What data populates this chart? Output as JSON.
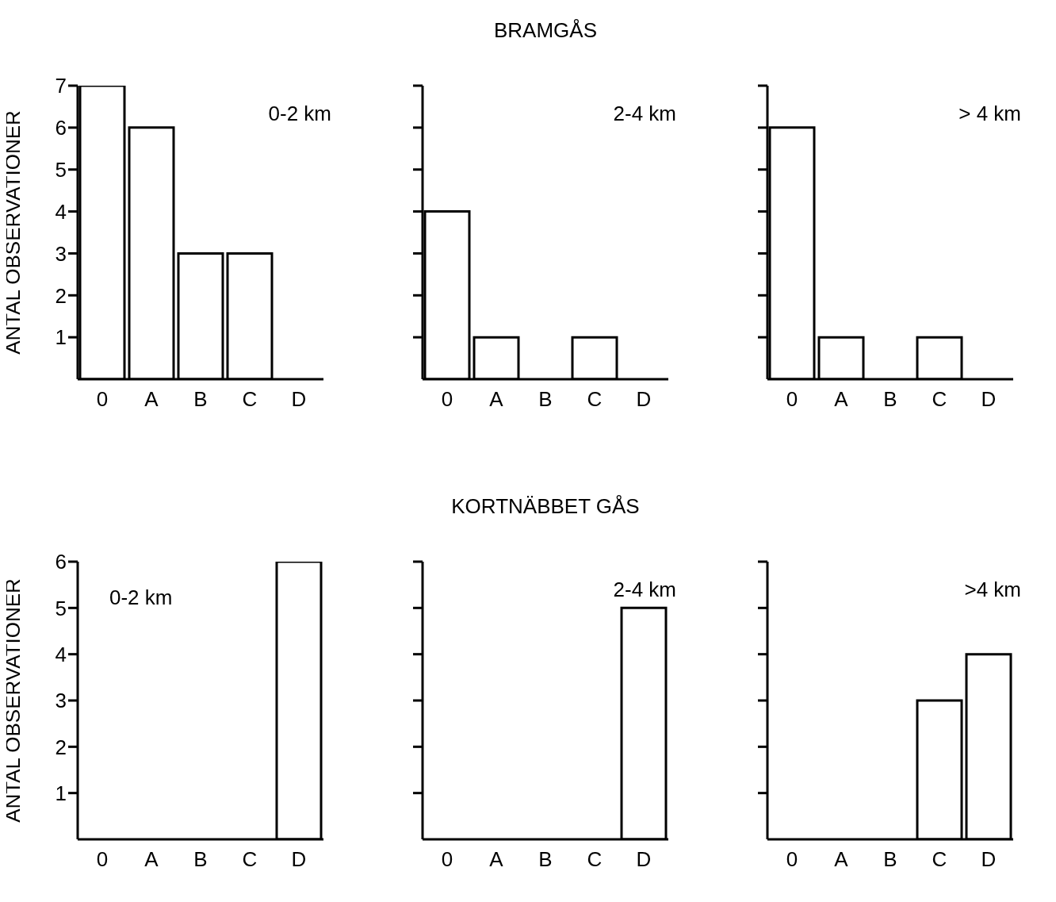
{
  "chart_data": [
    {
      "type": "bar",
      "ylabel": "ANTAL OBSERVATIONER",
      "annotations": [
        "0-2 km"
      ],
      "categories": [
        "0",
        "A",
        "B",
        "C",
        "D"
      ],
      "values": [
        7,
        6,
        3,
        3,
        0
      ],
      "color": "#ffffff",
      "ylim": [
        0,
        7
      ],
      "yticks": [
        1,
        2,
        3,
        4,
        5,
        6,
        7
      ],
      "grid": false
    },
    {
      "type": "bar",
      "title": "BRAMGÅS",
      "annotations": [
        "2-4 km"
      ],
      "categories": [
        "0",
        "A",
        "B",
        "C",
        "D"
      ],
      "values": [
        4,
        1,
        0,
        1,
        0
      ],
      "color": "#ffffff",
      "ylim": [
        0,
        7
      ],
      "yticks": [
        1,
        2,
        3,
        4,
        5,
        6,
        7
      ],
      "grid": false,
      "tick_labels": "x"
    },
    {
      "type": "bar",
      "annotations": [
        "> 4 km"
      ],
      "categories": [
        "0",
        "A",
        "B",
        "C",
        "D"
      ],
      "values": [
        6,
        1,
        0,
        1,
        0
      ],
      "color": "#ffffff",
      "ylim": [
        0,
        7
      ],
      "yticks": [
        1,
        2,
        3,
        4,
        5,
        6,
        7
      ],
      "grid": false,
      "tick_labels": "x"
    },
    {
      "type": "bar",
      "ylabel": "ANTAL OBSERVATIONER",
      "annotations": [
        "0-2 km"
      ],
      "categories": [
        "0",
        "A",
        "B",
        "C",
        "D"
      ],
      "values": [
        0,
        0,
        0,
        0,
        6
      ],
      "color": "#ffffff",
      "ylim": [
        0,
        6
      ],
      "yticks": [
        1,
        2,
        3,
        4,
        5,
        6
      ],
      "grid": false
    },
    {
      "type": "bar",
      "title": "KORTNÄBBET GÅS",
      "annotations": [
        "2-4 km"
      ],
      "categories": [
        "0",
        "A",
        "B",
        "C",
        "D"
      ],
      "values": [
        0,
        0,
        0,
        0,
        5
      ],
      "color": "#ffffff",
      "ylim": [
        0,
        6
      ],
      "yticks": [
        1,
        2,
        3,
        4,
        5,
        6
      ],
      "grid": false,
      "tick_labels": "x"
    },
    {
      "type": "bar",
      "annotations": [
        ">4 km"
      ],
      "categories": [
        "0",
        "A",
        "B",
        "C",
        "D"
      ],
      "values": [
        0,
        0,
        0,
        3,
        4
      ],
      "color": "#ffffff",
      "ylim": [
        0,
        6
      ],
      "yticks": [
        1,
        2,
        3,
        4,
        5,
        6
      ],
      "grid": false,
      "tick_labels": "x"
    }
  ]
}
